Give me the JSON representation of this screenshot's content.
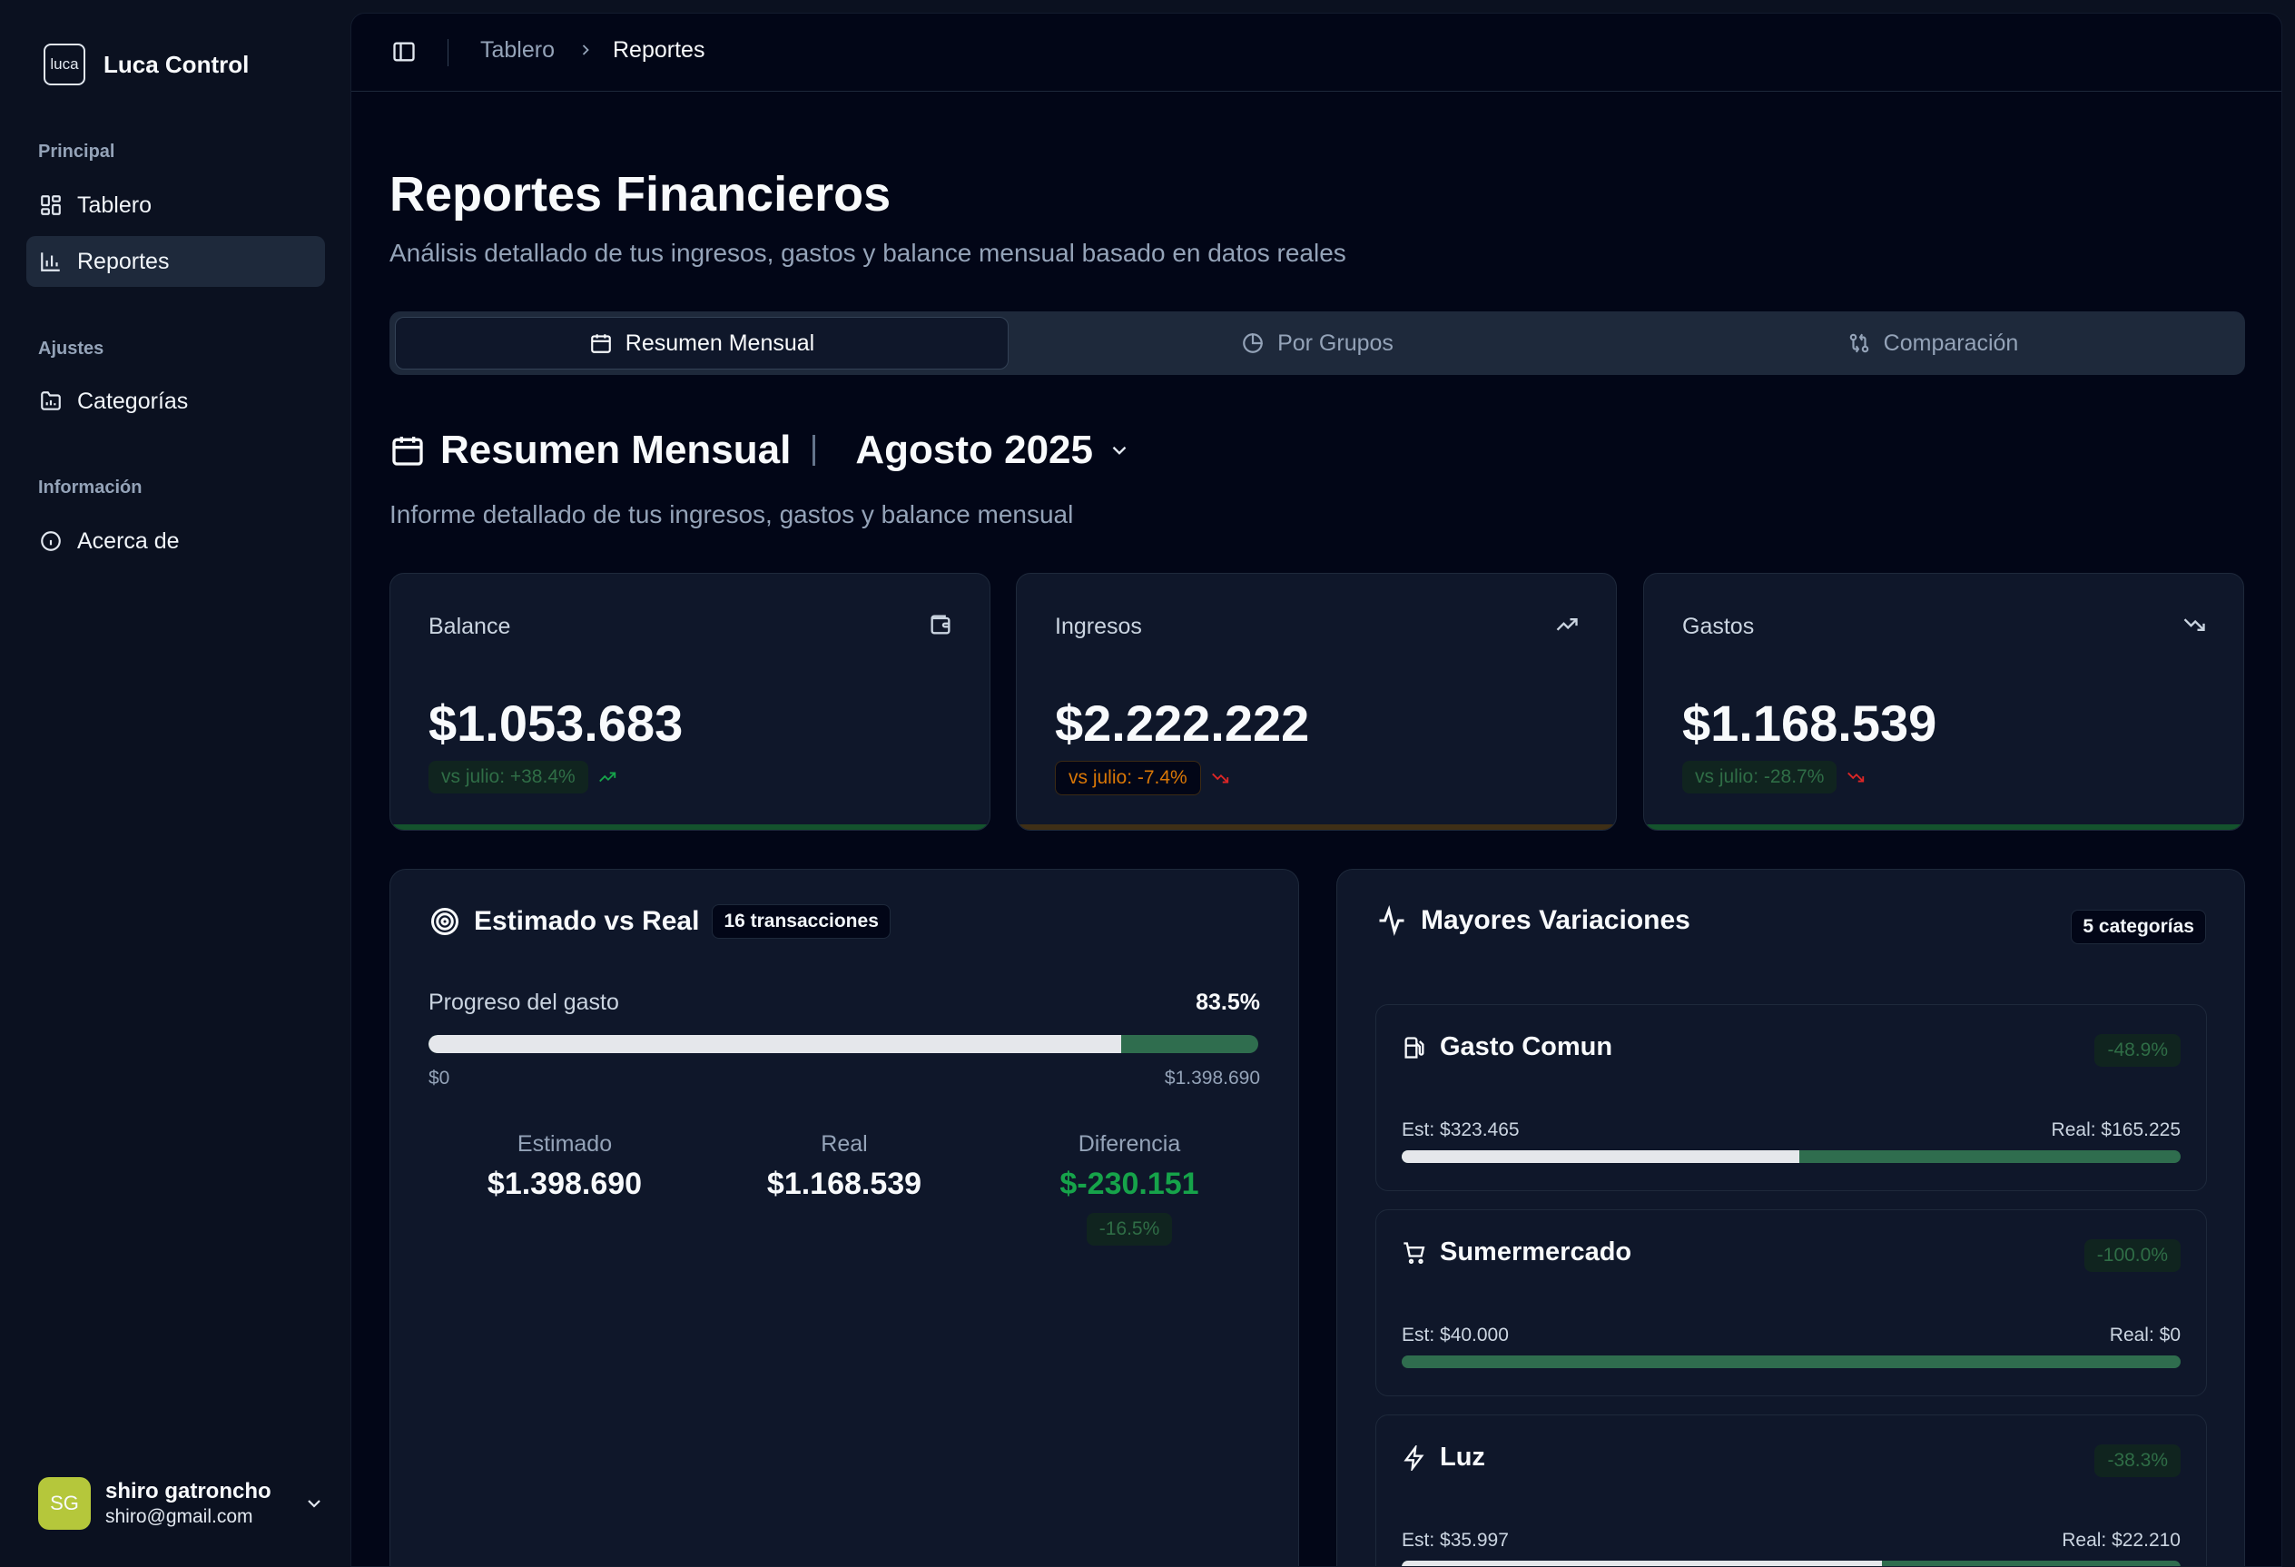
{
  "brand": {
    "logo_text": "luca",
    "name": "Luca Control"
  },
  "sidebar": {
    "groups": [
      {
        "label": "Principal",
        "items": [
          {
            "label": "Tablero",
            "icon": "dashboard-icon"
          },
          {
            "label": "Reportes",
            "icon": "bar-chart-icon",
            "active": true
          }
        ]
      },
      {
        "label": "Ajustes",
        "items": [
          {
            "label": "Categorías",
            "icon": "folder-chart-icon"
          }
        ]
      },
      {
        "label": "Información",
        "items": [
          {
            "label": "Acerca de",
            "icon": "info-icon"
          }
        ]
      }
    ],
    "user": {
      "initials": "SG",
      "name": "shiro gatroncho",
      "email": "shiro@gmail.com"
    }
  },
  "topbar": {
    "breadcrumb": [
      "Tablero",
      "Reportes"
    ]
  },
  "page": {
    "title": "Reportes Financieros",
    "subtitle": "Análisis detallado de tus ingresos, gastos y balance mensual basado en datos reales"
  },
  "tabs": [
    {
      "label": "Resumen Mensual",
      "icon": "calendar-icon",
      "active": true
    },
    {
      "label": "Por Grupos",
      "icon": "pie-chart-icon"
    },
    {
      "label": "Comparación",
      "icon": "compare-icon"
    }
  ],
  "section": {
    "title": "Resumen Mensual",
    "month": "Agosto 2025",
    "subtitle": "Informe detallado de tus ingresos, gastos y balance mensual"
  },
  "kpis": [
    {
      "label": "Balance",
      "value": "$1.053.683",
      "badge": "vs julio: +38.4%",
      "icon": "wallet-icon",
      "trend": "up",
      "color": "#16a34a"
    },
    {
      "label": "Ingresos",
      "value": "$2.222.222",
      "badge": "vs julio: -7.4%",
      "icon": "trending-up-icon",
      "trend": "down",
      "color": "#d97706"
    },
    {
      "label": "Gastos",
      "value": "$1.168.539",
      "badge": "vs julio: -28.7%",
      "icon": "trending-down-icon",
      "trend": "down",
      "color": "#16a34a"
    }
  ],
  "estimado": {
    "title": "Estimado vs Real",
    "chip": "16 transacciones",
    "progress_label": "Progreso del gasto",
    "progress_pct": "83.5%",
    "progress_value": 0.835,
    "min": "$0",
    "max": "$1.398.690",
    "stats": [
      {
        "label": "Estimado",
        "value": "$1.398.690"
      },
      {
        "label": "Real",
        "value": "$1.168.539"
      },
      {
        "label": "Diferencia",
        "value": "$-230.151",
        "badge": "-16.5%"
      }
    ]
  },
  "variaciones": {
    "title": "Mayores Variaciones",
    "chip": "5 categorías",
    "items": [
      {
        "name": "Gasto Comun",
        "icon": "fuel-icon",
        "badge": "-48.9%",
        "est": "Est: $323.465",
        "real": "Real: $165.225",
        "progress": 0.51
      },
      {
        "name": "Sumermercado",
        "icon": "cart-icon",
        "badge": "-100.0%",
        "est": "Est: $40.000",
        "real": "Real: $0",
        "progress": 0.0
      },
      {
        "name": "Luz",
        "icon": "bolt-icon",
        "badge": "-38.3%",
        "est": "Est: $35.997",
        "real": "Real: $22.210",
        "progress": 0.617
      }
    ]
  },
  "colors": {
    "background": "#0b1120",
    "panel": "#0f172a",
    "accent_green": "#16a34a",
    "accent_orange": "#d97706",
    "track_green": "#2f6d4e",
    "avatar": "#b5c73b"
  }
}
